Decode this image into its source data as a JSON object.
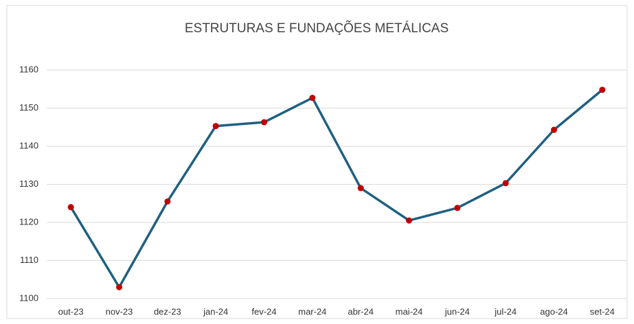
{
  "chart_data": {
    "type": "line",
    "title": "ESTRUTURAS E FUNDAÇÕES METÁLICAS",
    "categories": [
      "out-23",
      "nov-23",
      "dez-23",
      "jan-24",
      "fev-24",
      "mar-24",
      "abr-24",
      "mai-24",
      "jun-24",
      "jul-24",
      "ago-24",
      "set-24"
    ],
    "series": [
      {
        "name": "Estruturas e Fundações Metálicas",
        "color": "#1f6080",
        "marker_color": "#c00000",
        "values": [
          1124,
          1103,
          1125.5,
          1145.3,
          1146.3,
          1152.7,
          1129,
          1120.5,
          1123.8,
          1130.3,
          1144.3,
          1154.8
        ]
      }
    ],
    "ylim": [
      1100,
      1160
    ],
    "yticks": [
      1100,
      1110,
      1120,
      1130,
      1140,
      1150,
      1160
    ],
    "grid": true
  }
}
